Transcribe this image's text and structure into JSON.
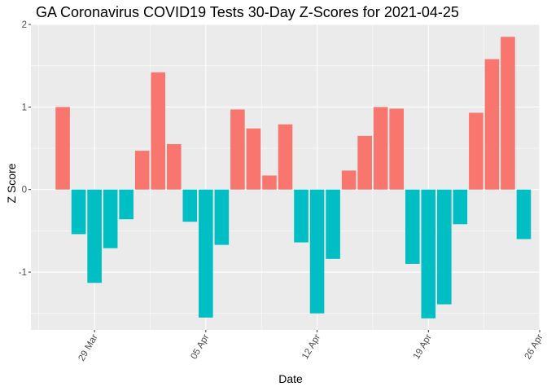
{
  "chart_data": {
    "type": "bar",
    "title": "GA Coronavirus COVID19 Tests 30-Day Z-Scores for 2021-04-25",
    "xlabel": "Date",
    "ylabel": "Z Score",
    "ylim": [
      -1.7,
      2.0
    ],
    "y_ticks": [
      -1,
      0,
      1,
      2
    ],
    "y_tick_labels": [
      "-1",
      "0",
      "1",
      "2"
    ],
    "x_ticks": [
      "2021-03-29",
      "2021-04-05",
      "2021-04-12",
      "2021-04-19",
      "2021-04-26"
    ],
    "x_tick_labels": [
      "29 Mar",
      "05 Apr",
      "12 Apr",
      "19 Apr",
      "26 Apr"
    ],
    "xlim": [
      "2021-03-25",
      "2021-04-26"
    ],
    "grid": true,
    "legend": "none",
    "colors": {
      "positive": "#F8766D",
      "negative": "#00BFC4"
    },
    "x": [
      "2021-03-27",
      "2021-03-28",
      "2021-03-29",
      "2021-03-30",
      "2021-03-31",
      "2021-04-01",
      "2021-04-02",
      "2021-04-03",
      "2021-04-04",
      "2021-04-05",
      "2021-04-06",
      "2021-04-07",
      "2021-04-08",
      "2021-04-09",
      "2021-04-10",
      "2021-04-11",
      "2021-04-12",
      "2021-04-13",
      "2021-04-14",
      "2021-04-15",
      "2021-04-16",
      "2021-04-17",
      "2021-04-18",
      "2021-04-19",
      "2021-04-20",
      "2021-04-21",
      "2021-04-22",
      "2021-04-23",
      "2021-04-24",
      "2021-04-25"
    ],
    "values": [
      1.0,
      -0.54,
      -1.13,
      -0.71,
      -0.36,
      0.47,
      1.42,
      0.55,
      -0.39,
      -1.55,
      -0.67,
      0.97,
      0.74,
      0.17,
      0.79,
      -0.64,
      -1.5,
      -0.84,
      0.23,
      0.65,
      1.0,
      0.98,
      -0.9,
      -1.56,
      -1.39,
      -0.42,
      0.93,
      1.58,
      1.85,
      -0.6
    ]
  }
}
